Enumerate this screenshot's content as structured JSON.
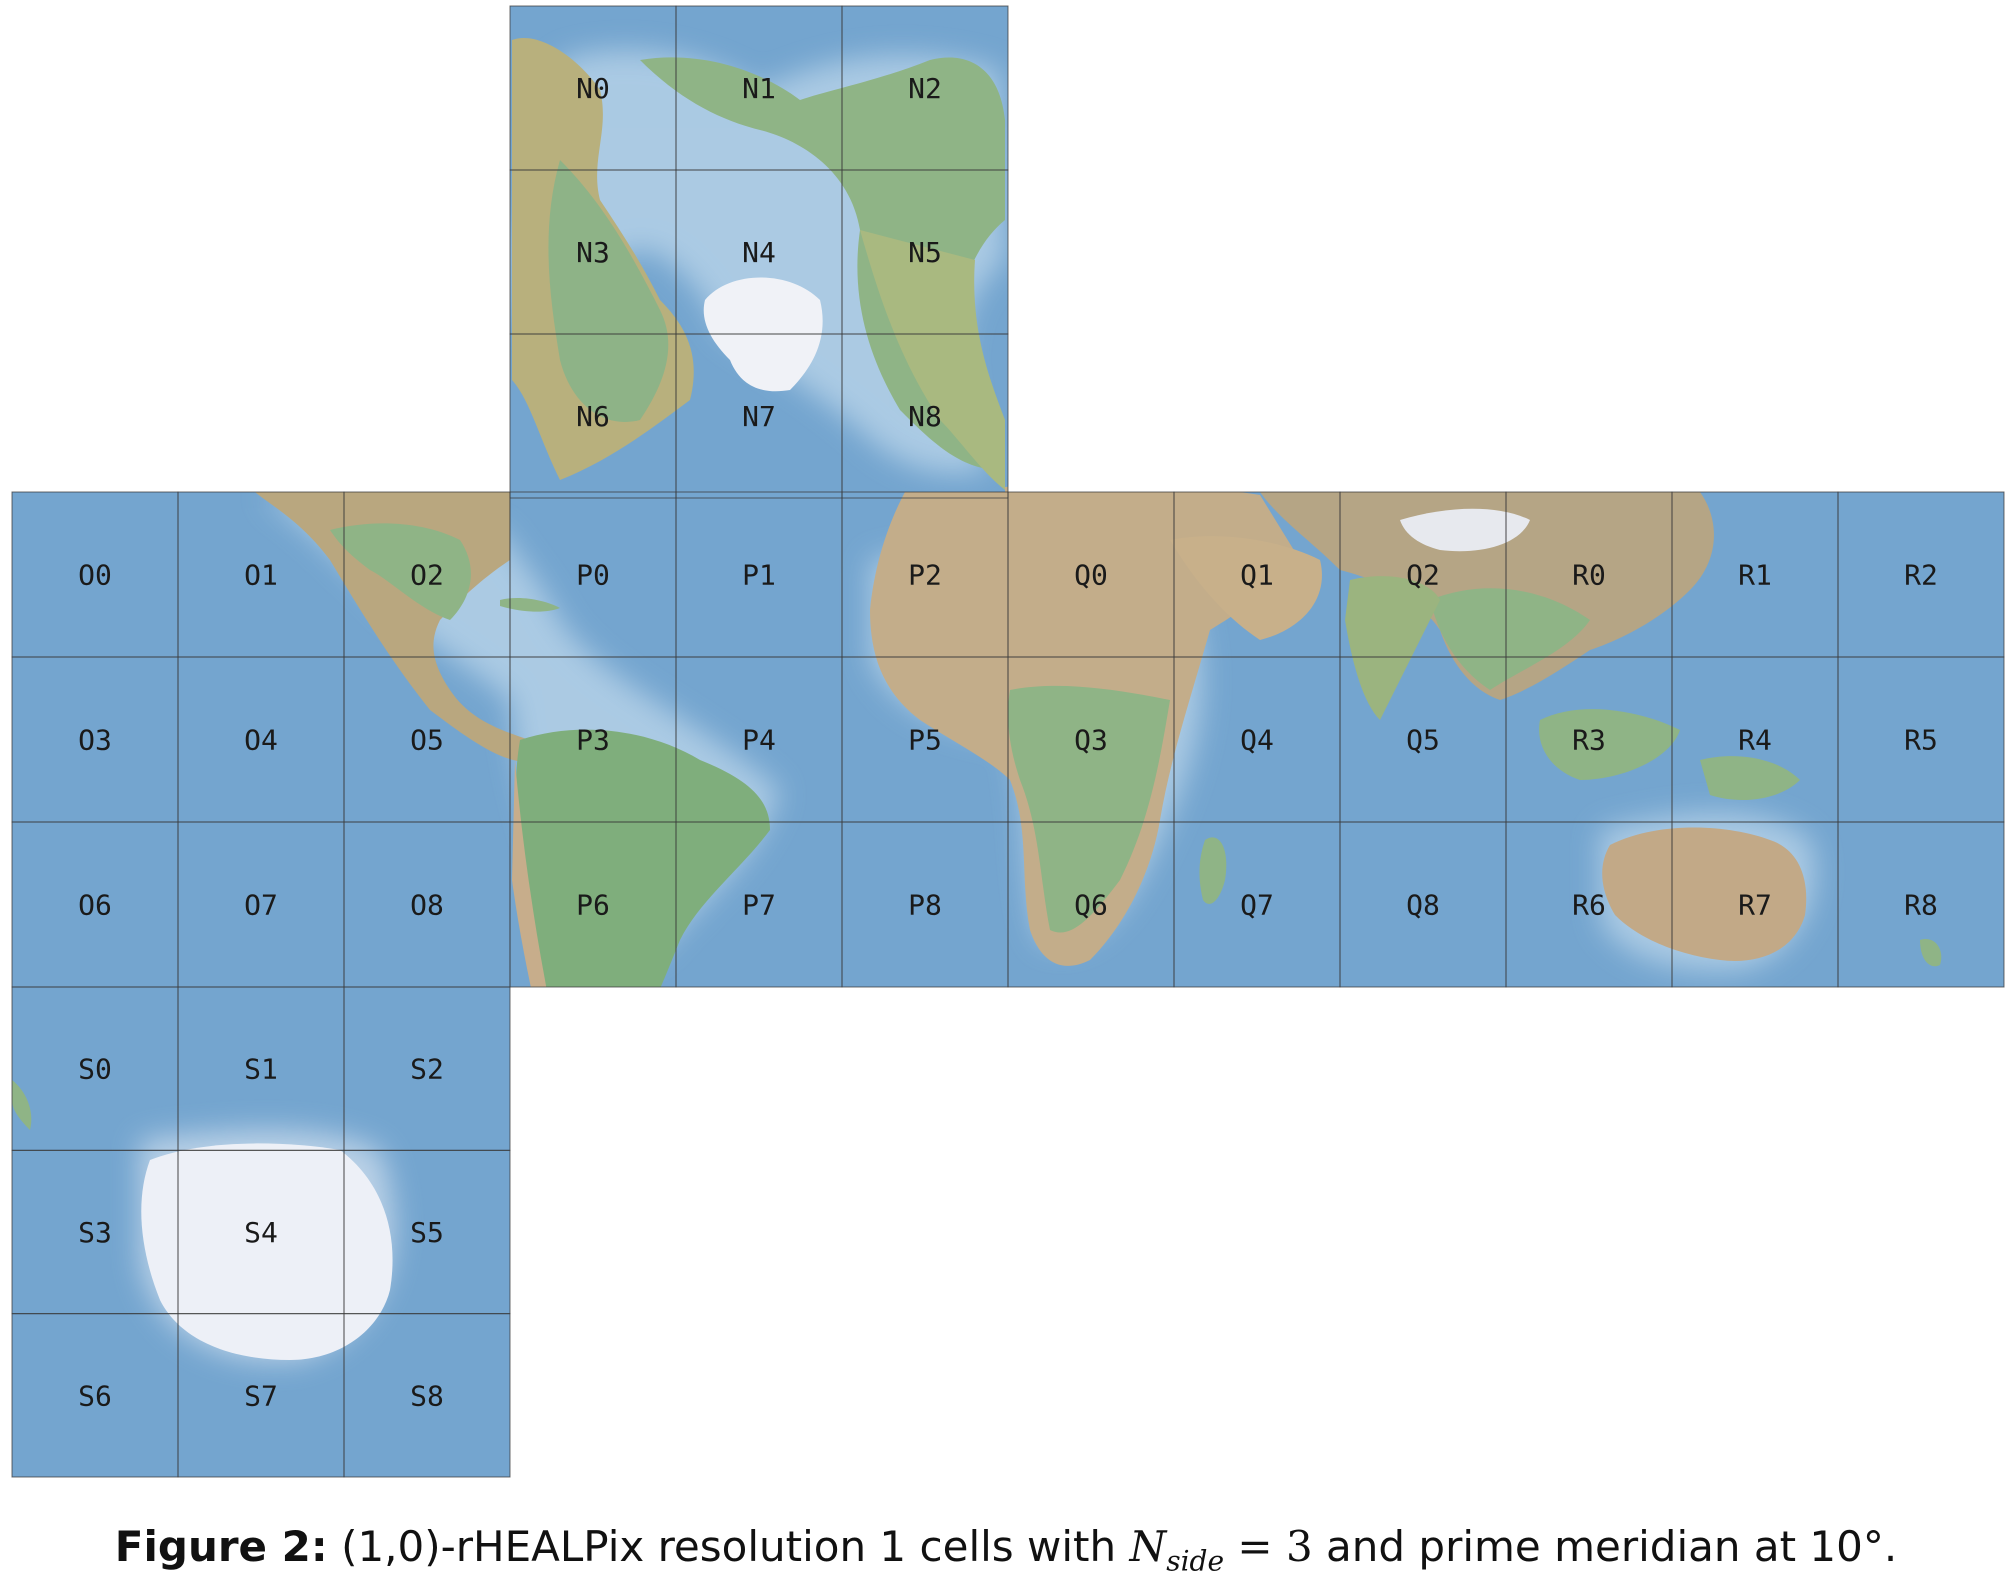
{
  "map": {
    "face_rows": [
      "N",
      null,
      null,
      null
    ],
    "cells": {
      "N": [
        "N0",
        "N1",
        "N2",
        "N3",
        "N4",
        "N5",
        "N6",
        "N7",
        "N8"
      ],
      "O": [
        "O0",
        "O1",
        "O2",
        "O3",
        "O4",
        "O5",
        "O6",
        "O7",
        "O8"
      ],
      "P": [
        "P0",
        "P1",
        "P2",
        "P3",
        "P4",
        "P5",
        "P6",
        "P7",
        "P8"
      ],
      "Q": [
        "Q0",
        "Q1",
        "Q2",
        "Q3",
        "Q4",
        "Q5",
        "Q6",
        "Q7",
        "Q8"
      ],
      "R": [
        "R0",
        "R1",
        "R2",
        "R3",
        "R4",
        "R5",
        "R6",
        "R7",
        "R8"
      ],
      "S": [
        "S0",
        "S1",
        "S2",
        "S3",
        "S4",
        "S5",
        "S6",
        "S7",
        "S8"
      ]
    },
    "colors": {
      "ocean": "#74a5cf",
      "land": "#c8b48c",
      "vegetation": "#8fb486",
      "ice": "#eef0f6",
      "grid": "#3a3a3a"
    }
  },
  "caption": {
    "label": "Figure 2:",
    "text_before": "(1,0)-rHEALPix resolution 1 cells with",
    "math_symbol": "N",
    "math_subscript": "side",
    "math_rest": "= 3",
    "text_after": "and prime meridian at 10°."
  }
}
